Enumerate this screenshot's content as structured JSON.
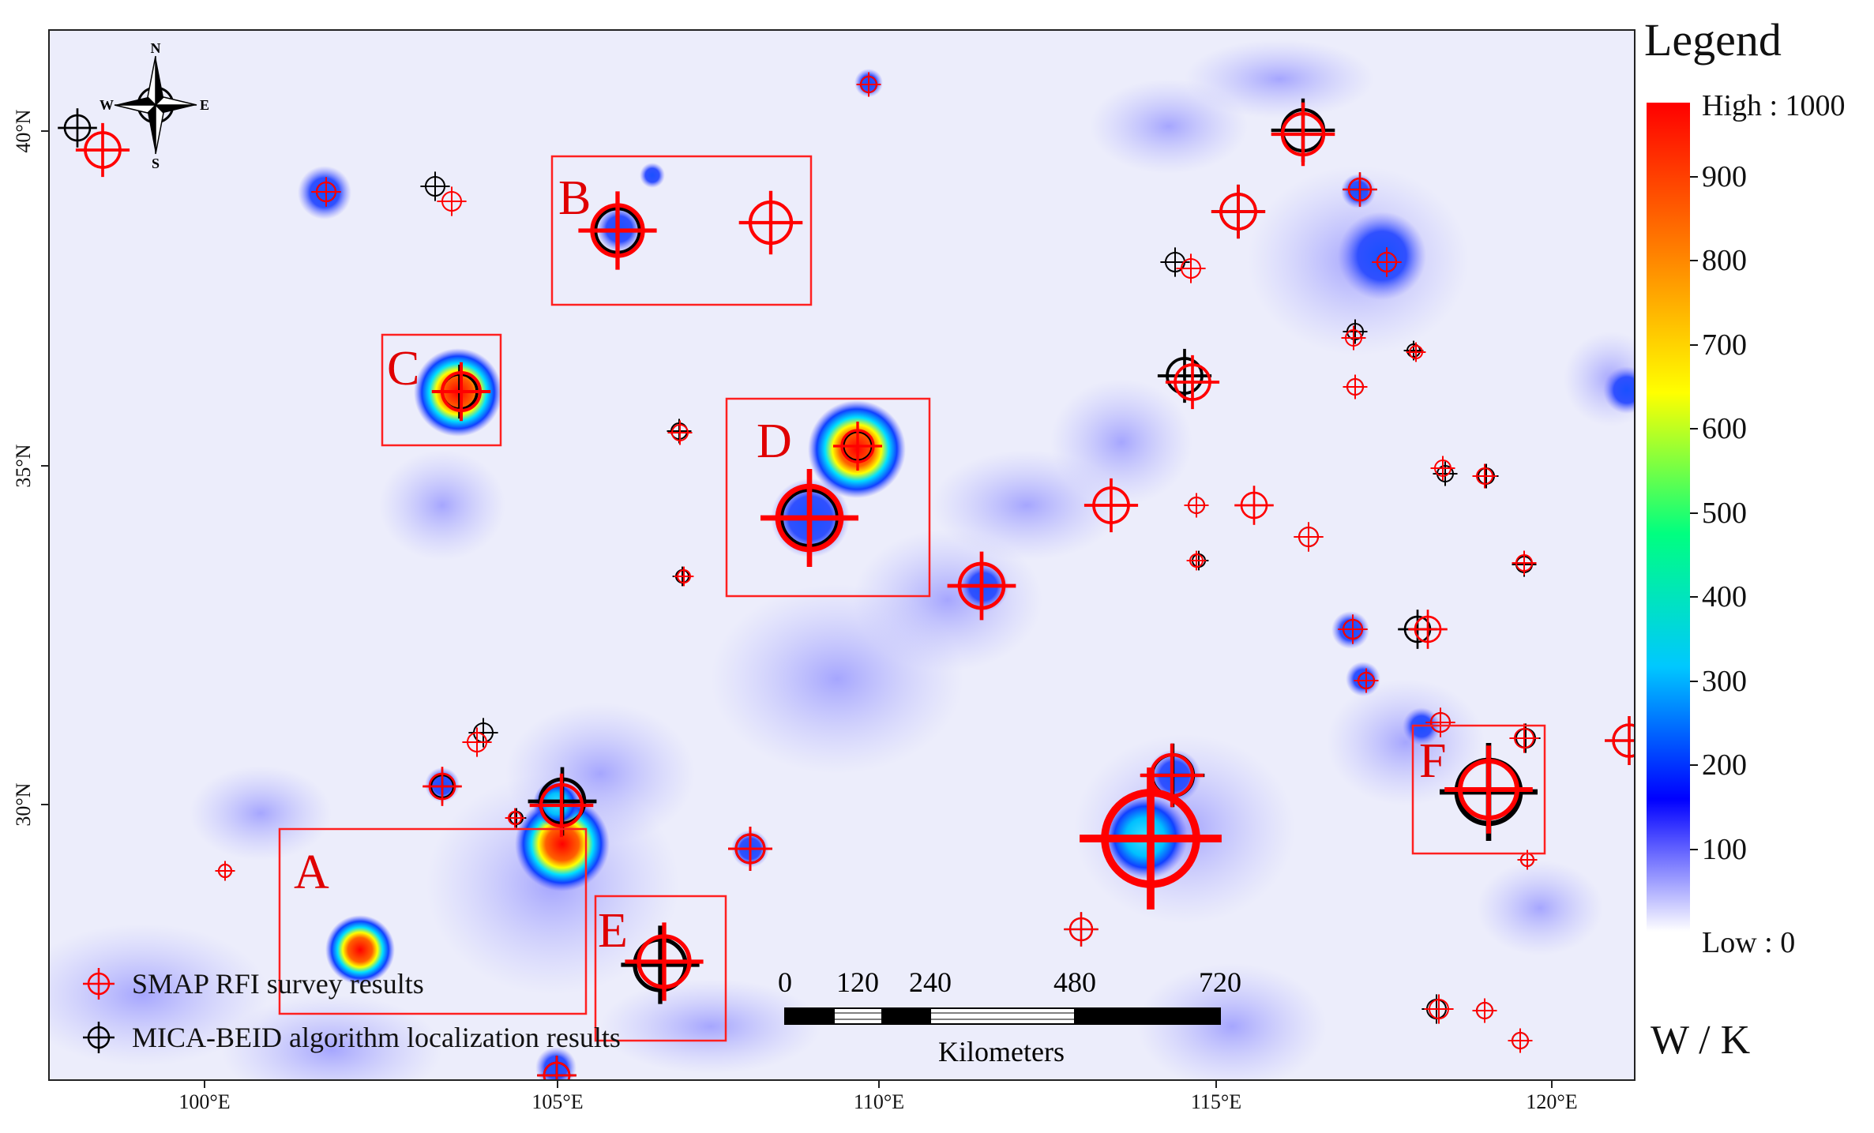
{
  "legend": {
    "title": "Legend",
    "high_label": "High : 1000",
    "low_label": "Low : 0",
    "ticks": [
      "900",
      "800",
      "700",
      "600",
      "500",
      "400",
      "300",
      "200",
      "100"
    ],
    "unit": "W / K",
    "colors": [
      "#ffffff",
      "#8080ff",
      "#0000ff",
      "#00c8ff",
      "#00ff80",
      "#ffff00",
      "#ff8000",
      "#ff0000"
    ]
  },
  "axes": {
    "lat_labels": [
      "40°N",
      "35°N",
      "30°N"
    ],
    "lon_labels": [
      "100°E",
      "105°E",
      "110°E",
      "115°E",
      "120°E"
    ]
  },
  "compass": {
    "n": "N",
    "s": "S",
    "e": "E",
    "w": "W"
  },
  "regions": [
    "A",
    "B",
    "C",
    "D",
    "E",
    "F"
  ],
  "map_legend": {
    "smap_label": "SMAP RFI survey results",
    "mica_label": "MICA-BEID algorithm localization results",
    "smap_color": "#ff0000",
    "mica_color": "#000000"
  },
  "scalebar": {
    "ticks": [
      "0",
      "120",
      "240",
      "480",
      "720"
    ],
    "unit": "Kilometers"
  }
}
